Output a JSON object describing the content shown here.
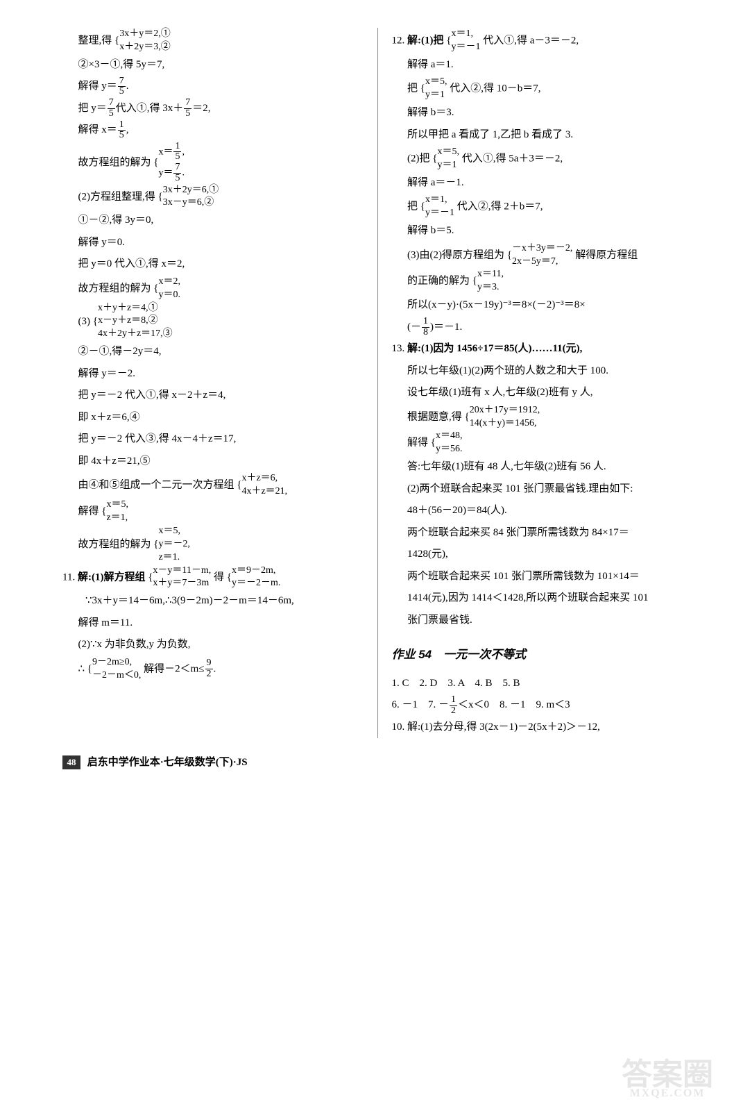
{
  "footer": {
    "page": "48",
    "text": "启东中学作业本·七年级数学(下)·JS"
  },
  "watermark": {
    "top": "答案圈",
    "bottom": "MXQE.COM"
  },
  "left": {
    "l01": "整理,得",
    "l01a": "3x＋y＝2,①",
    "l01b": "x＋2y＝3,②",
    "l02": "②×3－①,得 5y＝7,",
    "l03a": "解得 y＝",
    "l03b": ".",
    "l04a": "把 y＝",
    "l04b": "代入①,得 3x＋",
    "l04c": "＝2,",
    "l05a": "解得 x＝",
    "l05b": ",",
    "l06": "故方程组的解为",
    "l06a": "x＝",
    "l06b": ",",
    "l06c": "y＝",
    "l06d": ".",
    "l07": "(2)方程组整理,得",
    "l07a": "3x＋2y＝6,①",
    "l07b": "3x－y＝6,②",
    "l08": "①－②,得 3y＝0,",
    "l09": "解得 y＝0.",
    "l10": "把 y＝0 代入①,得 x＝2,",
    "l11": "故方程组的解为",
    "l11a": "x＝2,",
    "l11b": "y＝0.",
    "l12": "(3)",
    "l12a": "x＋y＋z＝4,①",
    "l12b": "x－y＋z＝8,②",
    "l12c": "4x＋2y＋z＝17,③",
    "l13": "②－①,得－2y＝4,",
    "l14": "解得 y＝－2.",
    "l15": "把 y＝－2 代入①,得 x－2＋z＝4,",
    "l16": "即 x＋z＝6,④",
    "l17": "把 y＝－2 代入③,得 4x－4＋z＝17,",
    "l18": "即 4x＋z＝21,⑤",
    "l19": "由④和⑤组成一个二元一次方程组",
    "l19a": "x＋z＝6,",
    "l19b": "4x＋z＝21,",
    "l20": "解得",
    "l20a": "x＝5,",
    "l20b": "z＝1,",
    "l21": "故方程组的解为",
    "l21a": "x＝5,",
    "l21b": "y＝－2,",
    "l21c": "z＝1.",
    "q11": "11.",
    "l22": "解:(1)解方程组",
    "l22a": "x－y＝11－m,",
    "l22b": "x＋y＝7－3m",
    "l22m": "得",
    "l22c": "x＝9－2m,",
    "l22d": "y＝－2－m.",
    "l23": "∵3x＋y＝14－6m,∴3(9－2m)－2－m＝14－6m,",
    "l24": "解得 m＝11.",
    "l25": "(2)∵x 为非负数,y 为负数,",
    "l26": "∴",
    "l26a": "9－2m≥0,",
    "l26b": "－2－m＜0,",
    "l26c": "解得－2＜m≤",
    "l26d": "."
  },
  "right": {
    "q12": "12.",
    "l01": "解:(1)把",
    "l01a": "x＝1,",
    "l01b": "y＝－1",
    "l01c": "代入①,得 a－3＝－2,",
    "l02": "解得 a＝1.",
    "l03": "把",
    "l03a": "x＝5,",
    "l03b": "y＝1",
    "l03c": "代入②,得 10－b＝7,",
    "l04": "解得 b＝3.",
    "l05": "所以甲把 a 看成了 1,乙把 b 看成了 3.",
    "l06": "(2)把",
    "l06a": "x＝5,",
    "l06b": "y＝1",
    "l06c": "代入①,得 5a＋3＝－2,",
    "l07": "解得 a＝－1.",
    "l08": "把",
    "l08a": "x＝1,",
    "l08b": "y＝－1",
    "l08c": "代入②,得 2＋b＝7,",
    "l09": "解得 b＝5.",
    "l10": "(3)由(2)得原方程组为",
    "l10a": "－x＋3y＝－2,",
    "l10b": "2x－5y＝7,",
    "l10c": "解得原方程组",
    "l11": "的正确的解为",
    "l11a": "x＝11,",
    "l11b": "y＝3.",
    "l12a": "所以(x－y)·(5x－19y)⁻³＝8×(－2)⁻³＝8×",
    "l12b": "(－",
    "l12c": ")＝－1.",
    "q13": "13.",
    "l13": "解:(1)因为 1456÷17＝85(人)……11(元),",
    "l14": "所以七年级(1)(2)两个班的人数之和大于 100.",
    "l15": "设七年级(1)班有 x 人,七年级(2)班有 y 人,",
    "l16": "根据题意,得",
    "l16a": "20x＋17y＝1912,",
    "l16b": "14(x＋y)＝1456,",
    "l17": "解得",
    "l17a": "x＝48,",
    "l17b": "y＝56.",
    "l18": "答:七年级(1)班有 48 人,七年级(2)班有 56 人.",
    "l19": "(2)两个班联合起来买 101 张门票最省钱.理由如下:",
    "l20": "48＋(56－20)＝84(人).",
    "l21": "两个班联合起来买 84 张门票所需钱数为 84×17＝",
    "l22": "1428(元),",
    "l23": "两个班联合起来买 101 张门票所需钱数为 101×14＝",
    "l24": "1414(元),因为 1414＜1428,所以两个班联合起来买 101",
    "l25": "张门票最省钱.",
    "title54": "作业 54　一元一次不等式",
    "a1": "1. C　2. D　3. A　4. B　5. B",
    "a2a": "6. －1　7. －",
    "a2b": "＜x＜0　8. －1　9. m＜3",
    "a10": "10. 解:(1)去分母,得 3(2x－1)－2(5x＋2)＞－12,"
  },
  "frac": {
    "7_5t": "7",
    "7_5b": "5",
    "1_5t": "1",
    "1_5b": "5",
    "9_2t": "9",
    "9_2b": "2",
    "1_8t": "1",
    "1_8b": "8",
    "1_2t": "1",
    "1_2b": "2"
  }
}
